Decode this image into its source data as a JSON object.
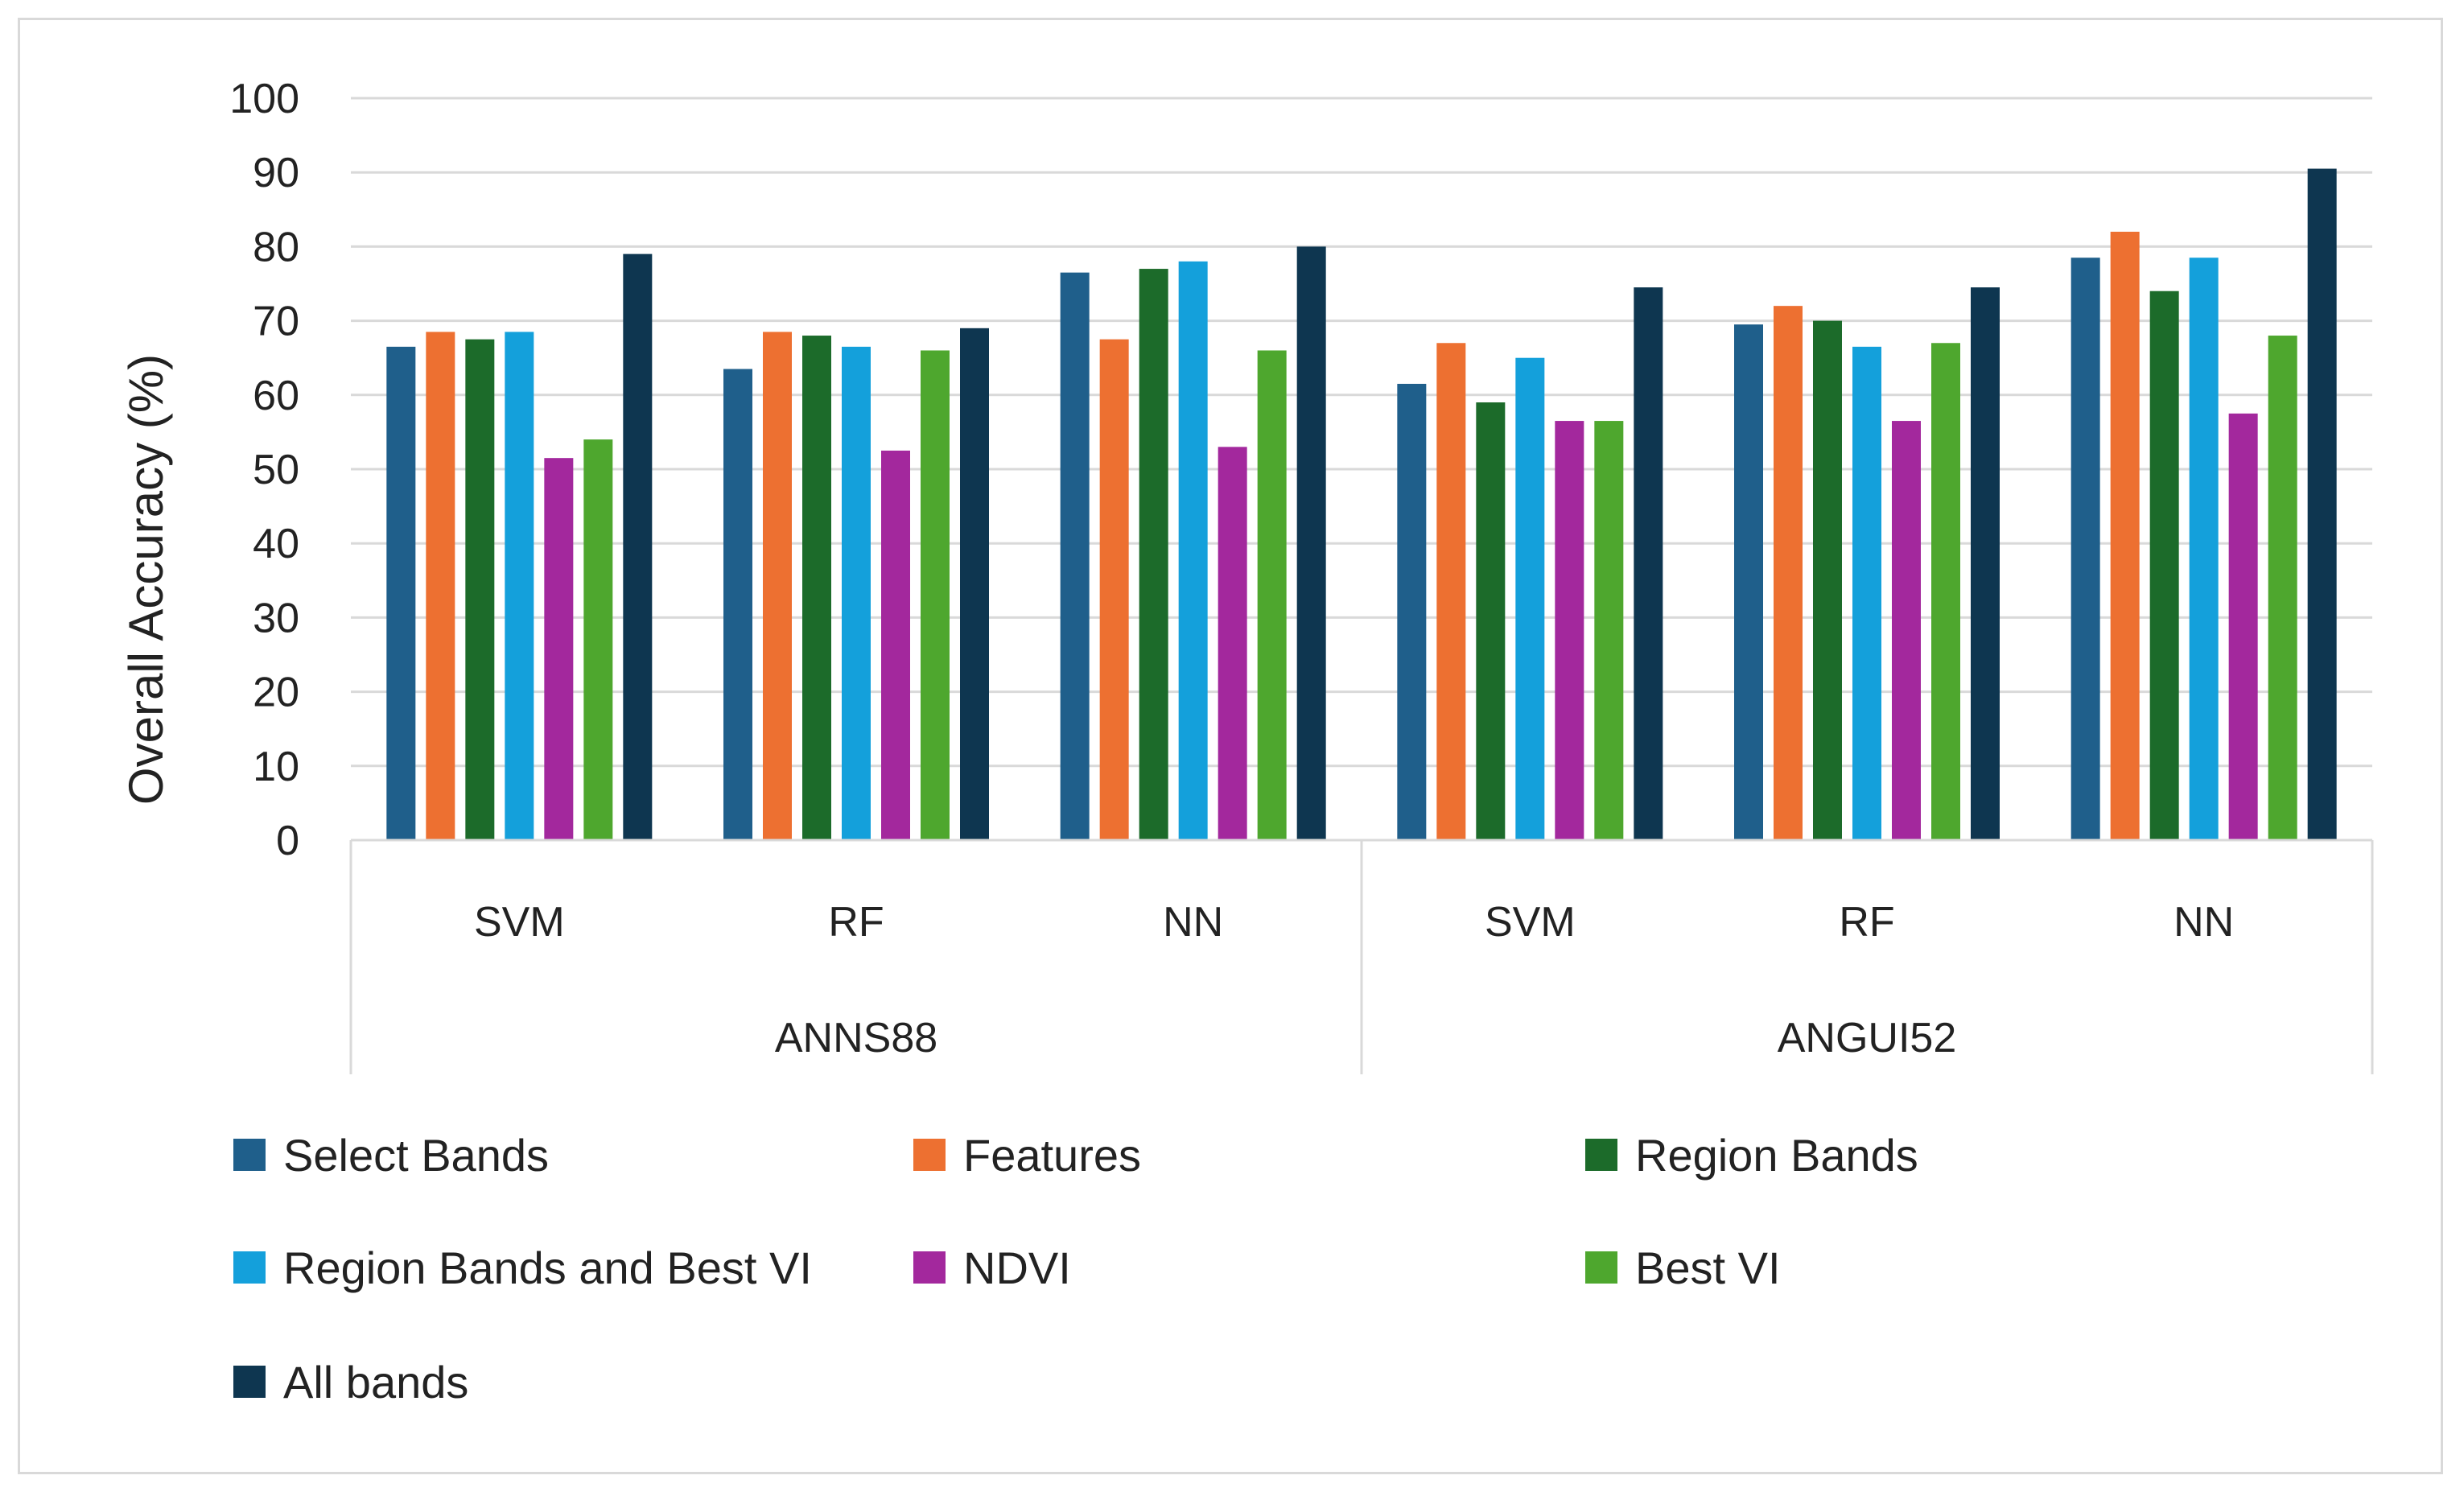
{
  "chart_data": {
    "type": "bar",
    "title": "",
    "ylabel": "Overall Accuracy (%)",
    "xlabel": "",
    "ylim": [
      0,
      100
    ],
    "yticks": [
      0,
      10,
      20,
      30,
      40,
      50,
      60,
      70,
      80,
      90,
      100
    ],
    "grid": true,
    "legend_position": "bottom",
    "groups": [
      {
        "name": "ANNS88",
        "categories": [
          "SVM",
          "RF",
          "NN"
        ]
      },
      {
        "name": "ANGUI52",
        "categories": [
          "SVM",
          "RF",
          "NN"
        ]
      }
    ],
    "categories": [
      "SVM",
      "RF",
      "NN",
      "SVM",
      "RF",
      "NN"
    ],
    "series": [
      {
        "name": "Select Bands",
        "color": "#1f5f8b",
        "values": [
          66.5,
          63.5,
          76.5,
          61.5,
          69.5,
          78.5
        ]
      },
      {
        "name": "Features",
        "color": "#ed7031",
        "values": [
          68.5,
          68.5,
          67.5,
          67.0,
          72.0,
          82.0
        ]
      },
      {
        "name": "Region Bands",
        "color": "#1c6b2a",
        "values": [
          67.5,
          68.0,
          77.0,
          59.0,
          70.0,
          74.0
        ]
      },
      {
        "name": "Region Bands and Best VI",
        "color": "#14a0db",
        "values": [
          68.5,
          66.5,
          78.0,
          65.0,
          66.5,
          78.5
        ]
      },
      {
        "name": "NDVI",
        "color": "#a3289d",
        "values": [
          51.5,
          52.5,
          53.0,
          56.5,
          56.5,
          57.5
        ]
      },
      {
        "name": "Best VI",
        "color": "#4ea72e",
        "values": [
          54.0,
          66.0,
          66.0,
          56.5,
          67.0,
          68.0
        ]
      },
      {
        "name": "All bands",
        "color": "#0e3650",
        "values": [
          79.0,
          69.0,
          80.0,
          74.5,
          74.5,
          90.5
        ]
      }
    ]
  }
}
